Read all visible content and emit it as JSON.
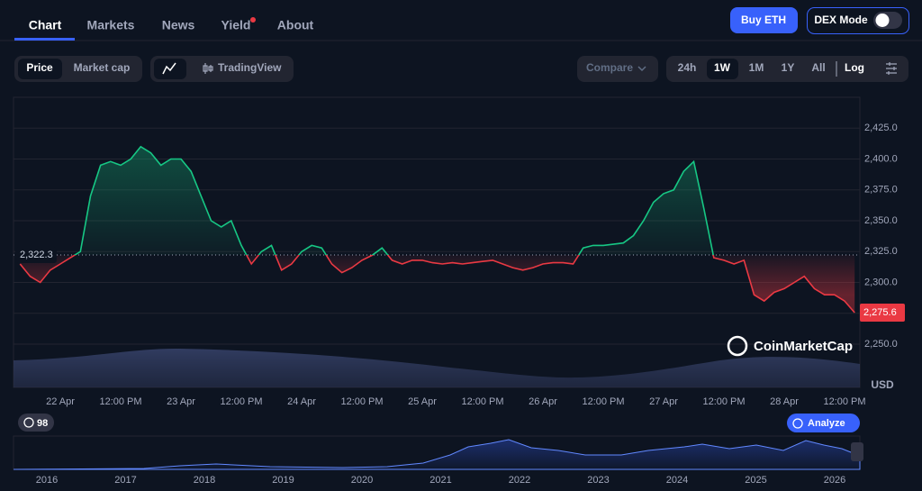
{
  "nav": {
    "tabs": [
      "Chart",
      "Markets",
      "News",
      "Yield",
      "About"
    ],
    "buy": "Buy ETH",
    "dex": "DEX Mode"
  },
  "toolbar": {
    "metrics": [
      "Price",
      "Market cap"
    ],
    "tradingview": "TradingView",
    "compare": "Compare",
    "ranges": [
      "24h",
      "1W",
      "1M",
      "1Y",
      "All"
    ],
    "log": "Log"
  },
  "chart_data": {
    "type": "line",
    "categories": [
      null,
      null,
      null,
      null,
      "22 Apr",
      null,
      null,
      null,
      null,
      null,
      "12:00 PM",
      null,
      null,
      null,
      null,
      null,
      "23 Apr",
      null,
      null,
      null,
      null,
      null,
      "12:00 PM",
      null,
      null,
      null,
      null,
      null,
      "24 Apr",
      null,
      null,
      null,
      null,
      null,
      "12:00 PM",
      null,
      null,
      null,
      null,
      null,
      "25 Apr",
      null,
      null,
      null,
      null,
      null,
      "12:00 PM",
      null,
      null,
      null,
      null,
      null,
      "26 Apr",
      null,
      null,
      null,
      null,
      null,
      "12:00 PM",
      null,
      null,
      null,
      null,
      null,
      "27 Apr",
      null,
      null,
      null,
      null,
      null,
      "12:00 PM",
      null,
      null,
      null,
      null,
      null,
      "28 Apr",
      null,
      null,
      null,
      null,
      null,
      "12:00 PM",
      null
    ],
    "values": [
      2315,
      2305,
      2300,
      2310,
      2315,
      2320,
      2325,
      2370,
      2395,
      2398,
      2395,
      2400,
      2410,
      2405,
      2395,
      2400,
      2400,
      2390,
      2370,
      2350,
      2345,
      2350,
      2330,
      2315,
      2325,
      2330,
      2310,
      2315,
      2325,
      2330,
      2328,
      2315,
      2308,
      2312,
      2318,
      2322,
      2328,
      2318,
      2315,
      2318,
      2318,
      2316,
      2315,
      2316,
      2315,
      2316,
      2317,
      2318,
      2315,
      2312,
      2310,
      2312,
      2315,
      2316,
      2316,
      2315,
      2328,
      2330,
      2330,
      2331,
      2332,
      2338,
      2350,
      2365,
      2372,
      2375,
      2390,
      2398,
      2360,
      2320,
      2318,
      2315,
      2318,
      2290,
      2285,
      2292,
      2295,
      2300,
      2305,
      2295,
      2290,
      2290,
      2285,
      2275.6
    ],
    "value_labels": [
      null,
      null,
      null,
      null,
      null,
      null,
      null,
      null,
      null,
      null,
      null,
      null,
      null,
      null,
      null,
      null,
      null,
      null,
      null,
      null,
      null,
      null,
      null,
      null,
      null,
      null,
      null,
      null,
      null,
      null,
      null,
      null,
      null,
      null,
      null,
      null,
      null,
      null,
      null,
      null,
      null,
      null,
      null,
      null,
      null,
      null,
      null,
      null,
      null,
      null,
      null,
      null,
      null,
      null,
      null,
      null,
      null,
      null,
      null,
      null,
      null,
      null,
      null,
      null,
      null,
      null,
      null,
      null,
      null,
      null,
      null,
      null,
      null,
      null,
      null,
      null,
      null,
      null,
      null,
      null,
      null,
      null,
      null,
      "2,275.6"
    ],
    "baseline": {
      "value": 2322.3,
      "label": "2,322.3"
    },
    "up_color": "#16c784",
    "down_color": "#ea3943",
    "ylim": [
      2215,
      2450
    ],
    "yticks": [
      {
        "value": 2250,
        "label": "2,250.0"
      },
      {
        "value": 2275,
        "label": "2,275.0"
      },
      {
        "value": 2300,
        "label": "2,300.0"
      },
      {
        "value": 2325,
        "label": "2,325.0"
      },
      {
        "value": 2350,
        "label": "2,350.0"
      },
      {
        "value": 2375,
        "label": "2,375.0"
      },
      {
        "value": 2400,
        "label": "2,400.0"
      },
      {
        "value": 2425,
        "label": "2,425.0"
      }
    ],
    "grid": true,
    "y_unit": "USD",
    "watermark": "CoinMarketCap"
  },
  "overview": {
    "badge": "98",
    "analyze": "Analyze",
    "years": [
      "2016",
      "2017",
      "2018",
      "2019",
      "2020",
      "2021",
      "2022",
      "2023",
      "2024",
      "2025",
      "2026"
    ]
  }
}
